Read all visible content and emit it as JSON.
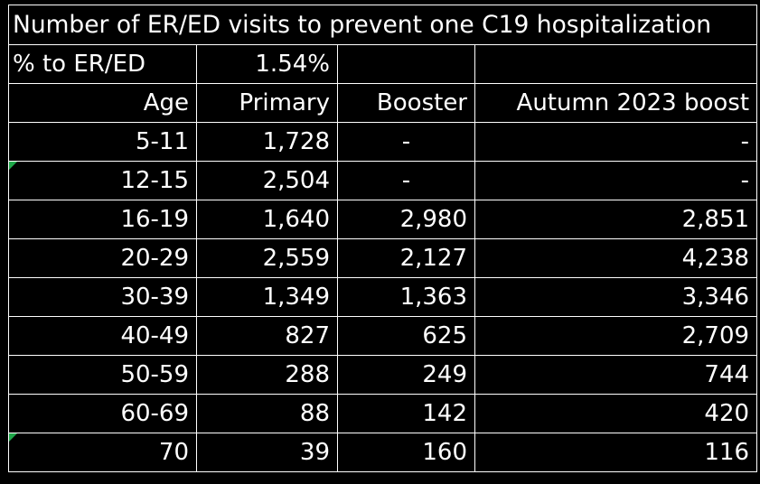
{
  "title": "Number of ER/ED visits to prevent one C19 hospitalization",
  "pct_row": {
    "label": "% to ER/ED",
    "value": "1.54%"
  },
  "headers": [
    "Age",
    "Primary",
    "Booster",
    "Autumn 2023 boost"
  ],
  "rows": [
    {
      "age": "5-11",
      "primary": "1,728",
      "booster": "-",
      "autumn": "-"
    },
    {
      "age": "12-15",
      "primary": "2,504",
      "booster": "-",
      "autumn": "-"
    },
    {
      "age": "16-19",
      "primary": "1,640",
      "booster": "2,980",
      "autumn": "2,851"
    },
    {
      "age": "20-29",
      "primary": "2,559",
      "booster": "2,127",
      "autumn": "4,238"
    },
    {
      "age": "30-39",
      "primary": "1,349",
      "booster": "1,363",
      "autumn": "3,346"
    },
    {
      "age": "40-49",
      "primary": "827",
      "booster": "625",
      "autumn": "2,709"
    },
    {
      "age": "50-59",
      "primary": "288",
      "booster": "249",
      "autumn": "744"
    },
    {
      "age": "60-69",
      "primary": "88",
      "booster": "142",
      "autumn": "420"
    },
    {
      "age": "70",
      "primary": "39",
      "booster": "160",
      "autumn": "116"
    }
  ],
  "colors": {
    "background": "#000000",
    "text": "#ffffff",
    "grid": "#ffffff",
    "error_indicator": "#1fa84a"
  }
}
